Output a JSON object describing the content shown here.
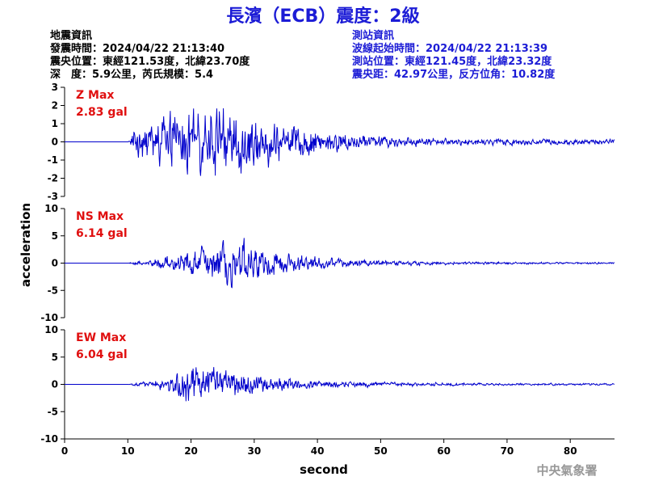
{
  "title": "長濱（ECB）震度：2級",
  "event_info": {
    "heading": "地震資訊",
    "origin_time": "發震時間：2024/04/22 21:13:40",
    "epicenter": "震央位置：東經121.53度，北緯23.70度",
    "depth_magnitude": "深　度：5.9公里，芮氏規模：5.4"
  },
  "station_info": {
    "heading": "測站資訊",
    "wave_start": "波線起始時間：2024/04/22 21:13:39",
    "station_location": "測站位置：東經121.45度，北緯23.32度",
    "distance_azimuth": "震央距：42.97公里，反方位角：10.82度"
  },
  "credit": "中央氣象署",
  "colors": {
    "trace": "#0000cc",
    "max_label": "#e01010",
    "title": "#1c1cd6"
  },
  "chart_data": {
    "type": "line",
    "xlabel": "second",
    "ylabel": "acceleration",
    "xlim": [
      0,
      87
    ],
    "xticks": [
      0,
      10,
      20,
      30,
      40,
      50,
      60,
      70,
      80
    ],
    "panels": [
      {
        "component": "Z",
        "max_label": "Z Max",
        "max_value": "2.83 gal",
        "peak": 2.83,
        "ylim": [
          -3,
          3
        ],
        "yticks": [
          3,
          2,
          1,
          0,
          -1,
          -2,
          -3
        ],
        "envelope": [
          [
            0,
            0
          ],
          [
            10,
            0
          ],
          [
            10.3,
            0.2
          ],
          [
            11,
            1.1
          ],
          [
            14,
            1.7
          ],
          [
            19,
            2.3
          ],
          [
            22,
            2.6
          ],
          [
            24,
            2.83
          ],
          [
            28,
            2.4
          ],
          [
            32,
            1.8
          ],
          [
            36,
            1.3
          ],
          [
            40,
            1.0
          ],
          [
            45,
            0.6
          ],
          [
            50,
            0.45
          ],
          [
            60,
            0.3
          ],
          [
            70,
            0.25
          ],
          [
            87,
            0.2
          ]
        ]
      },
      {
        "component": "NS",
        "max_label": "NS Max",
        "max_value": "6.14 gal",
        "peak": 6.14,
        "ylim": [
          -10,
          10
        ],
        "yticks": [
          10,
          5,
          0,
          -5,
          -10
        ],
        "envelope": [
          [
            0,
            0
          ],
          [
            10,
            0
          ],
          [
            10.5,
            0.3
          ],
          [
            13,
            0.9
          ],
          [
            17,
            2.0
          ],
          [
            20,
            3.3
          ],
          [
            23,
            4.6
          ],
          [
            26,
            5.4
          ],
          [
            28,
            6.14
          ],
          [
            31,
            4.2
          ],
          [
            35,
            2.8
          ],
          [
            40,
            1.6
          ],
          [
            45,
            1.0
          ],
          [
            52,
            0.7
          ],
          [
            62,
            0.45
          ],
          [
            72,
            0.3
          ],
          [
            87,
            0.25
          ]
        ]
      },
      {
        "component": "EW",
        "max_label": "EW Max",
        "max_value": "6.04 gal",
        "peak": 6.04,
        "ylim": [
          -10,
          10
        ],
        "yticks": [
          10,
          5,
          0,
          -5,
          -10
        ],
        "envelope": [
          [
            0,
            0
          ],
          [
            10,
            0
          ],
          [
            10.5,
            0.3
          ],
          [
            14,
            1.0
          ],
          [
            17,
            2.3
          ],
          [
            19,
            4.8
          ],
          [
            20,
            6.04
          ],
          [
            23,
            4.6
          ],
          [
            27,
            3.8
          ],
          [
            30,
            2.6
          ],
          [
            34,
            1.8
          ],
          [
            38,
            1.2
          ],
          [
            44,
            0.8
          ],
          [
            52,
            0.55
          ],
          [
            62,
            0.4
          ],
          [
            72,
            0.3
          ],
          [
            87,
            0.25
          ]
        ]
      }
    ]
  }
}
